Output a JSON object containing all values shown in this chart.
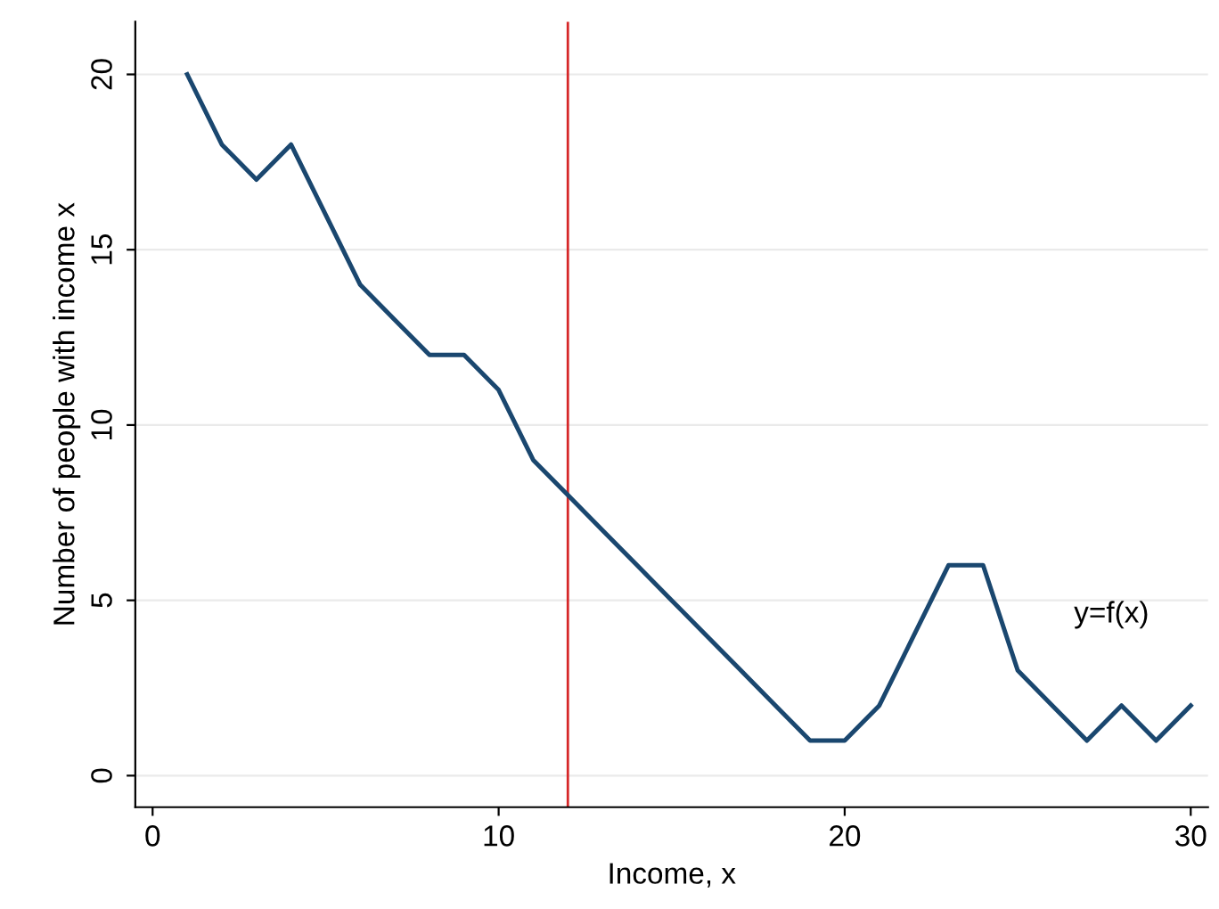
{
  "chart_data": {
    "type": "line",
    "xlabel": "Income, x",
    "ylabel": "Number of people with income x",
    "x": [
      1,
      2,
      3,
      4,
      5,
      6,
      7,
      8,
      9,
      10,
      11,
      12,
      13,
      14,
      15,
      16,
      17,
      18,
      19,
      20,
      21,
      22,
      23,
      24,
      25,
      26,
      27,
      28,
      29,
      30
    ],
    "series": [
      {
        "color": "#1a476f",
        "values": [
          20,
          18,
          17,
          18,
          16,
          14,
          13,
          12,
          12,
          11,
          9,
          8,
          7,
          6,
          5,
          4,
          3,
          2,
          1,
          1,
          2,
          4,
          6,
          6,
          3,
          2,
          1,
          2,
          1,
          2
        ]
      }
    ],
    "xlim": [
      -0.5,
      30.5
    ],
    "ylim": [
      -0.9,
      21.5
    ],
    "xticks": [
      0,
      10,
      20,
      30
    ],
    "yticks": [
      0,
      5,
      10,
      15,
      20
    ],
    "grid": "y",
    "marker": "none",
    "line_style": "solid",
    "ref_lines": [
      {
        "axis": "x",
        "value": 12,
        "color": "#d62728"
      }
    ],
    "annotations": [
      "y=f(x)"
    ]
  }
}
